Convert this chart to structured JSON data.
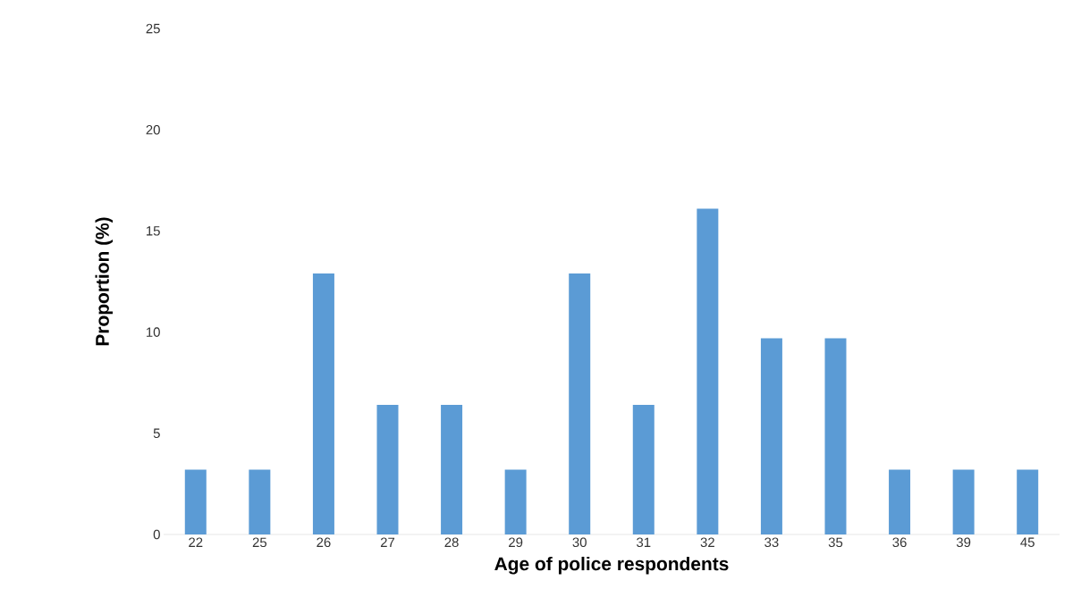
{
  "chart_data": {
    "type": "bar",
    "xlabel": "Age of police respondents",
    "ylabel": "Proportion (%)",
    "categories": [
      "22",
      "25",
      "26",
      "27",
      "28",
      "29",
      "30",
      "31",
      "32",
      "33",
      "35",
      "36",
      "39",
      "45"
    ],
    "values": [
      3.2,
      3.2,
      12.9,
      6.4,
      6.4,
      3.2,
      12.9,
      6.4,
      16.1,
      9.7,
      9.7,
      3.2,
      3.2,
      3.2
    ],
    "color": "#5b9bd5",
    "ylim": [
      0,
      25
    ],
    "yticks": [
      0,
      5,
      10,
      15,
      20,
      25
    ]
  }
}
